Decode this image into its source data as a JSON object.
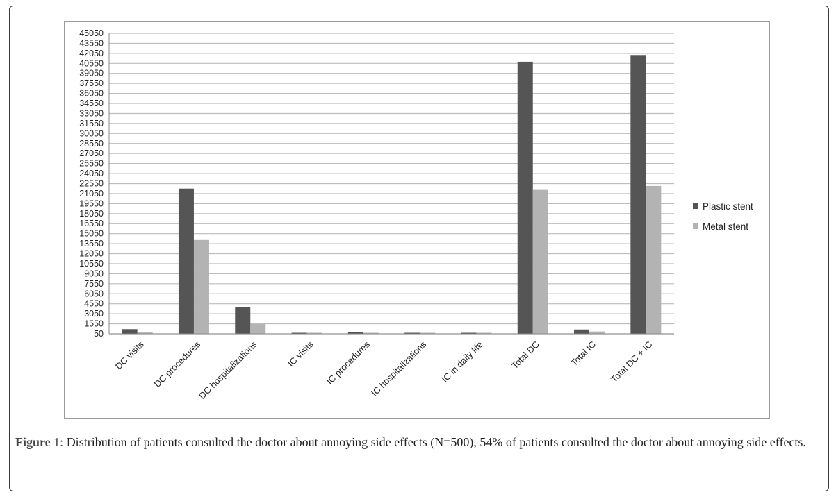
{
  "chart_data": {
    "type": "bar",
    "categories": [
      "DC visits",
      "DC procedures",
      "DC hospitalizations",
      "IC visits",
      "IC procedures",
      "IC hospitalizations",
      "IC in daily life",
      "Total DC",
      "Total IC",
      "Total DC + IC"
    ],
    "series": [
      {
        "name": "Plastic stent",
        "color": "#555555",
        "values": [
          750,
          21800,
          4000,
          80,
          300,
          120,
          100,
          40800,
          700,
          41800
        ]
      },
      {
        "name": "Metal stent",
        "color": "#b3b3b3",
        "values": [
          250,
          14100,
          1500,
          40,
          100,
          60,
          60,
          21600,
          400,
          22200
        ]
      }
    ],
    "y_ticks": [
      "45050",
      "43550",
      "42050",
      "40550",
      "39050",
      "37550",
      "36050",
      "34550",
      "33050",
      "31550",
      "30050",
      "28550",
      "27050",
      "25550",
      "24050",
      "22550",
      "21050",
      "19550",
      "18050",
      "16550",
      "15050",
      "13550",
      "12050",
      "10550",
      "9050",
      "7550",
      "6050",
      "4550",
      "3050",
      "1550",
      "50"
    ],
    "ylim": [
      50,
      45050
    ],
    "grid": true,
    "legend_position": "right"
  },
  "caption": {
    "label": "Figure",
    "number": "1:",
    "text": " Distribution of patients consulted the doctor about annoying side effects (N=500), 54% of patients consulted the doctor about annoying side effects."
  }
}
